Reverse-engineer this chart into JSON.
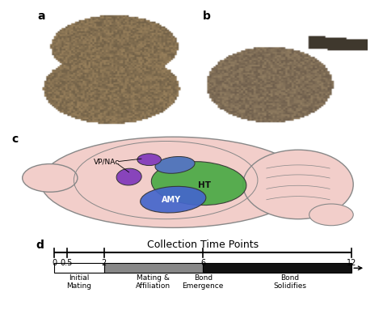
{
  "panel_d": {
    "title": "Collection Time Points",
    "tick_positions": [
      0,
      0.5,
      2,
      6,
      12
    ],
    "tick_labels": [
      "0",
      "0.5",
      "2",
      "6",
      "12"
    ],
    "xmin": 0,
    "xmax": 12,
    "bar_segments": [
      {
        "start": 0,
        "end": 2,
        "color": "#ffffff"
      },
      {
        "start": 2,
        "end": 6,
        "color": "#888888"
      },
      {
        "start": 6,
        "end": 12,
        "color": "#111111"
      }
    ],
    "phase_labels": [
      {
        "x": 1.0,
        "label": "Initial\nMating",
        "ha": "center"
      },
      {
        "x": 4.0,
        "label": "Mating &\nAffiliation",
        "ha": "center"
      },
      {
        "x": 6.0,
        "label": "Bond\nEmergence",
        "ha": "center"
      },
      {
        "x": 9.5,
        "label": "Bond\nSolidifies",
        "ha": "center"
      }
    ]
  },
  "brain": {
    "main_body_color": "#f2ceca",
    "inner_circle_color": "#f2ceca",
    "cerebellum_color": "#f2ceca",
    "ht_color": "#4aaa45",
    "amy_color": "#4466cc",
    "vp_nac_color": "#8844bb",
    "blue_region_color": "#5577bb",
    "outline_color": "#888888"
  },
  "panel_label_fontsize": 10,
  "title_fontsize": 9,
  "tick_fontsize": 7,
  "label_fontsize": 6.5,
  "background_color": "#ffffff"
}
